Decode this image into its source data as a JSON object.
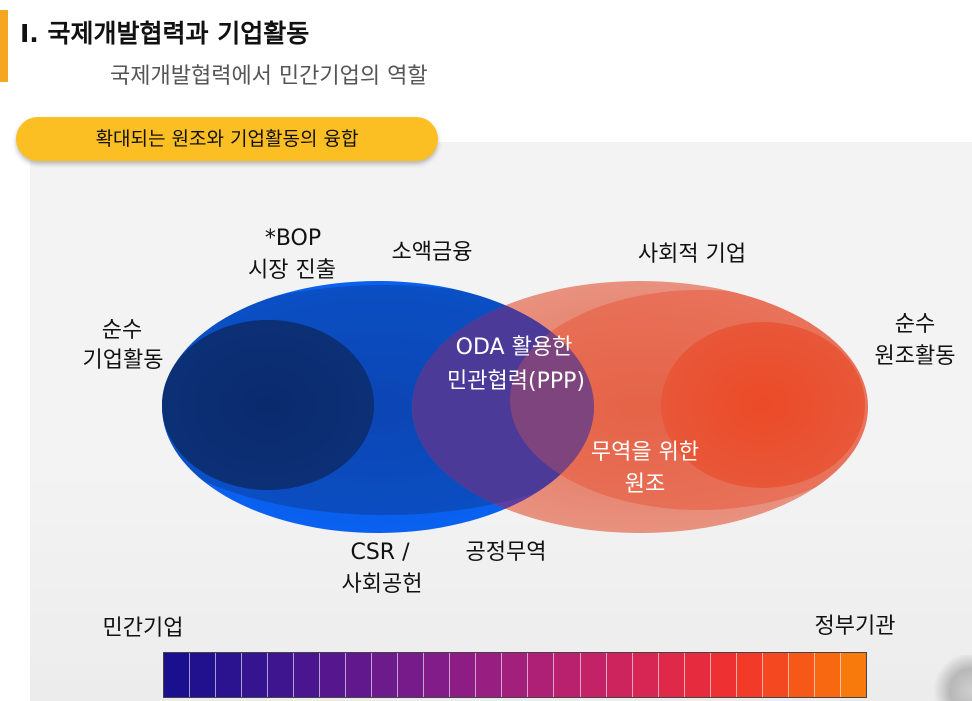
{
  "header": {
    "title": "I. 국제개발협력과 기업활동",
    "subtitle": "국제개발협력에서 민간기업의 역할"
  },
  "section": {
    "badge_label": "확대되는 원조와 기업활동의 융합"
  },
  "diagram": {
    "labels": {
      "bop": "*BOP",
      "bop_market": "시장 진출",
      "microfinance": "소액금융",
      "social_enterprise": "사회적 기업",
      "pure_business_line1": "순수",
      "pure_business_line2": "기업활동",
      "pure_aid_line1": "순수",
      "pure_aid_line2": "원조활동",
      "oda_ppp_line1": "ODA 활용한",
      "oda_ppp_line2": "민관협력(PPP)",
      "aid_for_trade_line1": "무역을 위한",
      "aid_for_trade_line2": "원조",
      "csr_line1": "CSR /",
      "csr_line2": "사회공헌",
      "fair_trade": "공정무역"
    },
    "colors": {
      "private_sector": "#0a63f2",
      "public_sector": "#e6866f",
      "overlap": "#5d3fa0",
      "inner_private": "#0b2d73",
      "inner_public": "#ea5030"
    }
  },
  "scale": {
    "left_label": "민간기업",
    "right_label": "정부기관",
    "colors": [
      "#1a0f8f",
      "#22118f",
      "#2b1390",
      "#35148f",
      "#3f158f",
      "#4a168f",
      "#56178e",
      "#61188d",
      "#6c1a8c",
      "#771b8a",
      "#821c88",
      "#8d1d85",
      "#981e81",
      "#a31f7c",
      "#ae2076",
      "#b9216f",
      "#c42267",
      "#ce245e",
      "#d82654",
      "#e02849",
      "#e72b3e",
      "#ee3033",
      "#f23a29",
      "#f44820",
      "#f65818",
      "#f76811",
      "#f87a0c"
    ]
  }
}
